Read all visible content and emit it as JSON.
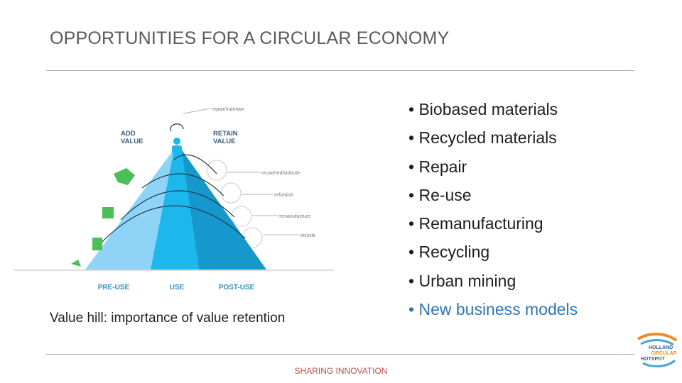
{
  "header": {
    "title": "OPPORTUNITIES FOR A CIRCULAR ECONOMY"
  },
  "diagram": {
    "top_label": "repair/maintain",
    "add_value": "ADD VALUE",
    "retain_value": "RETAIN VALUE",
    "loops": [
      "reuse/redistribute",
      "refurbish",
      "remanufacture",
      "recycle"
    ],
    "phases": [
      "PRE-USE",
      "USE",
      "POST-USE"
    ],
    "caption": "Value hill: importance of value retention"
  },
  "bullets": [
    "Biobased materials",
    "Recycled materials",
    "Repair",
    "Re-use",
    "Remanufacturing",
    "Recycling",
    "Urban mining",
    "New business models"
  ],
  "footer": "SHARING INNOVATION",
  "logo": [
    "HOLLAND",
    "CIRCULAR",
    "HOTSPOT"
  ]
}
